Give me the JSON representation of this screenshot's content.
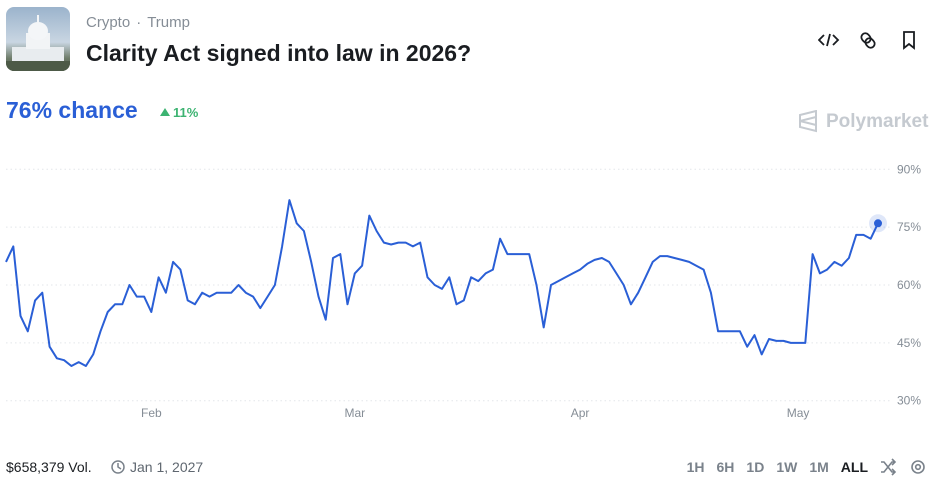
{
  "header": {
    "tags": [
      "Crypto",
      "Trump"
    ],
    "title": "Clarity Act signed into law in 2026?"
  },
  "chance": {
    "label": "76% chance",
    "change": "11%"
  },
  "brand": "Polymarket",
  "chart_data": {
    "type": "line",
    "color": "#2a5fd6",
    "grid": true,
    "ylim": [
      25,
      95
    ],
    "yticks": [
      {
        "value": 30,
        "label": "30%"
      },
      {
        "value": 45,
        "label": "45%"
      },
      {
        "value": 60,
        "label": "60%"
      },
      {
        "value": 75,
        "label": "75%"
      },
      {
        "value": 90,
        "label": "90%"
      }
    ],
    "categories": [
      null,
      null,
      null,
      null,
      null,
      null,
      null,
      null,
      null,
      null,
      null,
      null,
      null,
      null,
      null,
      null,
      null,
      null,
      null,
      null,
      "Feb",
      null,
      null,
      null,
      null,
      null,
      null,
      null,
      null,
      null,
      null,
      null,
      null,
      null,
      null,
      null,
      null,
      null,
      null,
      null,
      null,
      null,
      null,
      null,
      null,
      null,
      null,
      null,
      "Mar",
      null,
      null,
      null,
      null,
      null,
      null,
      null,
      null,
      null,
      null,
      null,
      null,
      null,
      null,
      null,
      null,
      null,
      null,
      null,
      null,
      null,
      null,
      null,
      null,
      null,
      null,
      null,
      null,
      null,
      null,
      "Apr",
      null,
      null,
      null,
      null,
      null,
      null,
      null,
      null,
      null,
      null,
      null,
      null,
      null,
      null,
      null,
      null,
      null,
      null,
      null,
      null,
      null,
      null,
      null,
      null,
      null,
      null,
      null,
      null,
      null,
      "May",
      null,
      null,
      null,
      null,
      null,
      null,
      null,
      null,
      null,
      null,
      null
    ],
    "values": [
      66,
      70,
      52,
      48,
      56,
      58,
      44,
      41,
      40.5,
      39,
      40,
      39,
      42,
      48,
      53,
      55,
      55,
      60,
      57,
      57,
      53,
      62,
      58,
      66,
      64,
      56,
      55,
      58,
      57,
      58,
      58,
      58,
      60,
      58,
      57,
      54,
      57,
      60,
      70,
      82,
      76,
      74,
      66,
      57,
      51,
      67,
      68,
      55,
      63,
      65,
      78,
      74,
      71,
      70.5,
      71,
      71,
      70,
      71,
      62,
      60,
      59,
      62,
      55,
      56,
      62,
      61,
      63,
      64,
      72,
      68,
      68,
      68,
      68,
      60,
      49,
      60,
      61,
      62,
      63,
      64,
      65.5,
      66.5,
      67,
      66,
      63,
      60,
      55,
      58,
      62,
      66,
      67.5,
      67.5,
      67,
      66.5,
      66,
      65,
      64,
      58,
      48,
      48,
      48,
      48,
      44,
      47,
      42,
      46,
      45.5,
      45.5,
      45,
      45,
      45,
      68,
      63,
      64,
      66,
      65,
      67,
      73,
      73,
      72,
      76
    ]
  },
  "footer": {
    "volume": "$658,379 Vol.",
    "end_date": "Jan 1, 2027",
    "ranges": [
      "1H",
      "6H",
      "1D",
      "1W",
      "1M",
      "ALL"
    ]
  }
}
